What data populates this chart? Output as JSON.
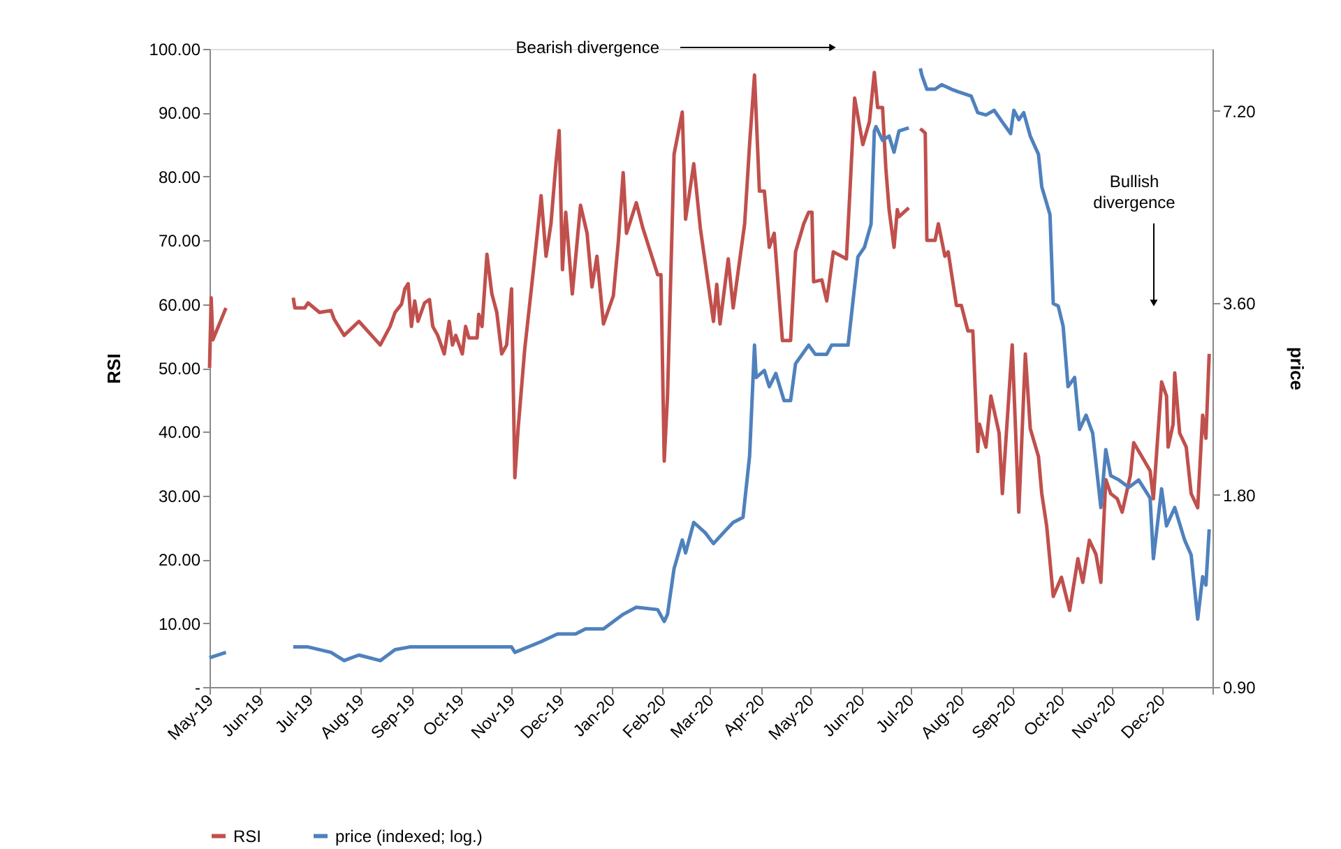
{
  "chart_data": {
    "type": "line",
    "ylabel": "RSI",
    "y2label": "price",
    "log": "y2",
    "grid": false,
    "legend": "bottom",
    "xlim": [
      "2019-05-01",
      "2021-01-01"
    ],
    "xticks": [
      {
        "value": "2019-05-01",
        "label": "May-19"
      },
      {
        "value": "2019-06-01",
        "label": "Jun-19"
      },
      {
        "value": "2019-07-01",
        "label": "Jul-19"
      },
      {
        "value": "2019-08-01",
        "label": "Aug-19"
      },
      {
        "value": "2019-09-01",
        "label": "Sep-19"
      },
      {
        "value": "2019-10-01",
        "label": "Oct-19"
      },
      {
        "value": "2019-11-01",
        "label": "Nov-19"
      },
      {
        "value": "2019-12-01",
        "label": "Dec-19"
      },
      {
        "value": "2020-01-01",
        "label": "Jan-20"
      },
      {
        "value": "2020-02-01",
        "label": "Feb-20"
      },
      {
        "value": "2020-03-01",
        "label": "Mar-20"
      },
      {
        "value": "2020-04-01",
        "label": "Apr-20"
      },
      {
        "value": "2020-05-01",
        "label": "May-20"
      },
      {
        "value": "2020-06-01",
        "label": "Jun-20"
      },
      {
        "value": "2020-07-01",
        "label": "Jul-20"
      },
      {
        "value": "2020-08-01",
        "label": "Aug-20"
      },
      {
        "value": "2020-09-01",
        "label": "Sep-20"
      },
      {
        "value": "2020-10-01",
        "label": "Oct-20"
      },
      {
        "value": "2020-11-01",
        "label": "Nov-20"
      },
      {
        "value": "2020-12-01",
        "label": "Dec-20"
      },
      {
        "value": "2021-01-01",
        "label": null
      }
    ],
    "ylim": [
      0,
      100
    ],
    "yticks": [
      {
        "value": 0,
        "label": "-"
      },
      {
        "value": 10,
        "label": "10.00"
      },
      {
        "value": 20,
        "label": "20.00"
      },
      {
        "value": 30,
        "label": "30.00"
      },
      {
        "value": 40,
        "label": "40.00"
      },
      {
        "value": 50,
        "label": "50.00"
      },
      {
        "value": 60,
        "label": "60.00"
      },
      {
        "value": 70,
        "label": "70.00"
      },
      {
        "value": 80,
        "label": "80.00"
      },
      {
        "value": 90,
        "label": "90.00"
      },
      {
        "value": 100,
        "label": "100.00"
      }
    ],
    "y2lim": [
      0.9,
      9.0
    ],
    "y2ticks": [
      {
        "value": 0.9,
        "label": "0.90"
      },
      {
        "value": 1.8,
        "label": "1.80"
      },
      {
        "value": 3.6,
        "label": "3.60"
      },
      {
        "value": 7.2,
        "label": "7.20"
      }
    ],
    "annotations": [
      "Bearish divergence",
      "Bullish divergence"
    ],
    "series": [
      {
        "name": "RSI",
        "color": "#c0504d",
        "x": [
          "2019-05-01",
          "2019-05-02",
          "2019-05-03",
          "2019-05-11",
          "2019-06-01",
          "2019-06-21",
          "2019-06-22",
          "2019-06-28",
          "2019-06-30",
          "2019-07-07",
          "2019-07-14",
          "2019-07-16",
          "2019-07-22",
          "2019-07-31",
          "2019-08-13",
          "2019-08-19",
          "2019-08-22",
          "2019-08-26",
          "2019-08-28",
          "2019-08-30",
          "2019-09-01",
          "2019-09-03",
          "2019-09-05",
          "2019-09-09",
          "2019-09-12",
          "2019-09-14",
          "2019-09-17",
          "2019-09-21",
          "2019-09-24",
          "2019-09-26",
          "2019-09-28",
          "2019-10-02",
          "2019-10-04",
          "2019-10-06",
          "2019-10-11",
          "2019-10-12",
          "2019-10-14",
          "2019-10-17",
          "2019-10-20",
          "2019-10-23",
          "2019-10-26",
          "2019-10-29",
          "2019-11-01",
          "2019-11-03",
          "2019-11-05",
          "2019-11-09",
          "2019-11-14",
          "2019-11-17",
          "2019-11-19",
          "2019-11-22",
          "2019-11-25",
          "2019-11-28",
          "2019-11-30",
          "2019-12-02",
          "2019-12-04",
          "2019-12-08",
          "2019-12-13",
          "2019-12-17",
          "2019-12-20",
          "2019-12-23",
          "2019-12-27",
          "2020-01-02",
          "2020-01-05",
          "2020-01-08",
          "2020-01-10",
          "2020-01-16",
          "2020-01-20",
          "2020-01-29",
          "2020-01-31",
          "2020-02-02",
          "2020-02-04",
          "2020-02-08",
          "2020-02-13",
          "2020-02-15",
          "2020-02-20",
          "2020-02-24",
          "2020-03-03",
          "2020-03-05",
          "2020-03-07",
          "2020-03-12",
          "2020-03-15",
          "2020-03-22",
          "2020-03-25",
          "2020-03-28",
          "2020-03-31",
          "2020-04-03",
          "2020-04-06",
          "2020-04-09",
          "2020-04-14",
          "2020-04-19",
          "2020-04-22",
          "2020-04-27",
          "2020-04-30",
          "2020-05-02",
          "2020-05-03",
          "2020-05-08",
          "2020-05-11",
          "2020-05-15",
          "2020-05-23",
          "2020-05-25",
          "2020-05-28",
          "2020-06-02",
          "2020-06-06",
          "2020-06-09",
          "2020-06-11",
          "2020-06-14",
          "2020-06-16",
          "2020-06-18",
          "2020-06-21",
          "2020-06-23",
          "2020-06-24",
          "2020-06-30",
          "2020-07-04",
          "2020-07-07",
          "2020-07-10",
          "2020-07-11",
          "2020-07-16",
          "2020-07-18",
          "2020-07-22",
          "2020-07-24",
          "2020-07-29",
          "2020-08-01",
          "2020-08-05",
          "2020-08-08",
          "2020-08-11",
          "2020-08-12",
          "2020-08-16",
          "2020-08-19",
          "2020-08-24",
          "2020-08-26",
          "2020-09-01",
          "2020-09-05",
          "2020-09-09",
          "2020-09-12",
          "2020-09-17",
          "2020-09-19",
          "2020-09-22",
          "2020-09-26",
          "2020-10-01",
          "2020-10-06",
          "2020-10-11",
          "2020-10-14",
          "2020-10-18",
          "2020-10-22",
          "2020-10-25",
          "2020-10-28",
          "2020-10-31",
          "2020-11-04",
          "2020-11-07",
          "2020-11-12",
          "2020-11-14",
          "2020-11-19",
          "2020-11-24",
          "2020-11-26",
          "2020-12-01",
          "2020-12-04",
          "2020-12-05",
          "2020-12-08",
          "2020-12-09",
          "2020-12-12",
          "2020-12-16",
          "2020-12-19",
          "2020-12-23",
          "2020-12-26",
          "2020-12-28",
          "2020-12-30"
        ],
        "values": [
          50,
          61,
          54.4,
          59.4,
          null,
          61,
          59.4,
          59.4,
          60.2,
          58.7,
          59,
          57.6,
          55.1,
          57.3,
          53.6,
          56.5,
          58.7,
          60,
          62.4,
          63.2,
          56.5,
          60.5,
          57.3,
          60.2,
          60.7,
          56.5,
          55.1,
          52.2,
          57.3,
          53.6,
          55.1,
          52.2,
          56.5,
          54.7,
          54.7,
          58.4,
          56.5,
          67.8,
          61.6,
          58.7,
          52.2,
          53.6,
          62.4,
          32.8,
          40.5,
          52.9,
          64.6,
          71.9,
          77,
          67.5,
          72.6,
          82,
          87.2,
          65.4,
          74.4,
          61.6,
          75.5,
          71.1,
          62.7,
          67.5,
          56.9,
          61.3,
          69.7,
          80.6,
          71.1,
          75.9,
          71.9,
          64.6,
          64.6,
          35.4,
          45.6,
          83.5,
          90.1,
          73.3,
          82,
          71.9,
          57.3,
          63.1,
          56.9,
          67.1,
          59.4,
          72.6,
          85,
          95.9,
          77.7,
          77.7,
          68.9,
          71.1,
          54.3,
          54.3,
          68.2,
          72.6,
          74.4,
          74.4,
          63.5,
          63.8,
          60.5,
          68.2,
          67.1,
          77,
          92.3,
          85,
          88.6,
          96.3,
          90.8,
          90.8,
          81.3,
          74.8,
          68.9,
          74.8,
          73.7,
          75.1,
          null,
          87.5,
          86.8,
          70,
          70,
          72.6,
          67.5,
          68.2,
          59.8,
          59.8,
          55.8,
          55.8,
          36.9,
          41.2,
          37.6,
          45.6,
          39.8,
          30.3,
          53.6,
          27.4,
          52.2,
          40.5,
          36.1,
          30.3,
          25.2,
          14.2,
          17.2,
          12,
          20.1,
          16.4,
          23,
          20.8,
          16.4,
          32.5,
          30.3,
          29.5,
          27.4,
          33.2,
          38.3,
          36.1,
          33.9,
          29.5,
          47.8,
          45.6,
          37.6,
          41.2,
          49.2,
          39.8,
          37.6,
          30.3,
          28.1,
          42.6,
          39,
          52.2
        ]
      },
      {
        "name": "price (indexed; log.)",
        "color": "#4f81bd",
        "axis": "y2",
        "x": [
          "2019-05-01",
          "2019-05-11",
          "2019-06-01",
          "2019-06-21",
          "2019-06-30",
          "2019-07-14",
          "2019-07-22",
          "2019-07-31",
          "2019-08-13",
          "2019-08-22",
          "2019-08-31",
          "2019-09-11",
          "2019-10-18",
          "2019-11-01",
          "2019-11-03",
          "2019-11-19",
          "2019-11-29",
          "2019-12-10",
          "2019-12-16",
          "2019-12-27",
          "2020-01-08",
          "2020-01-16",
          "2020-01-29",
          "2020-02-02",
          "2020-02-04",
          "2020-02-08",
          "2020-02-13",
          "2020-02-15",
          "2020-02-20",
          "2020-02-27",
          "2020-03-03",
          "2020-03-10",
          "2020-03-15",
          "2020-03-21",
          "2020-03-25",
          "2020-03-28",
          "2020-03-29",
          "2020-04-03",
          "2020-04-06",
          "2020-04-10",
          "2020-04-15",
          "2020-04-19",
          "2020-04-22",
          "2020-04-30",
          "2020-05-04",
          "2020-05-11",
          "2020-05-14",
          "2020-05-24",
          "2020-05-30",
          "2020-06-03",
          "2020-06-07",
          "2020-06-09",
          "2020-06-10",
          "2020-06-14",
          "2020-06-18",
          "2020-06-21",
          "2020-06-24",
          "2020-06-30",
          "2020-07-04",
          "2020-07-07",
          "2020-07-08",
          "2020-07-11",
          "2020-07-16",
          "2020-07-20",
          "2020-07-26",
          "2020-07-30",
          "2020-08-07",
          "2020-08-11",
          "2020-08-16",
          "2020-08-21",
          "2020-08-26",
          "2020-08-31",
          "2020-09-02",
          "2020-09-05",
          "2020-09-08",
          "2020-09-12",
          "2020-09-17",
          "2020-09-19",
          "2020-09-24",
          "2020-09-26",
          "2020-09-29",
          "2020-10-02",
          "2020-10-05",
          "2020-10-09",
          "2020-10-12",
          "2020-10-16",
          "2020-10-20",
          "2020-10-25",
          "2020-10-28",
          "2020-10-31",
          "2020-11-05",
          "2020-11-11",
          "2020-11-17",
          "2020-11-24",
          "2020-11-26",
          "2020-12-01",
          "2020-12-04",
          "2020-12-09",
          "2020-12-15",
          "2020-12-19",
          "2020-12-23",
          "2020-12-26",
          "2020-12-28",
          "2020-12-30"
        ],
        "values": [
          1.0,
          1.02,
          null,
          1.04,
          1.04,
          1.02,
          0.99,
          1.01,
          0.99,
          1.03,
          1.04,
          1.04,
          1.04,
          1.04,
          1.02,
          1.06,
          1.09,
          1.09,
          1.11,
          1.11,
          1.17,
          1.2,
          1.19,
          1.14,
          1.17,
          1.38,
          1.53,
          1.46,
          1.63,
          1.57,
          1.51,
          1.58,
          1.63,
          1.66,
          2.07,
          3.09,
          2.75,
          2.82,
          2.66,
          2.79,
          2.53,
          2.53,
          2.89,
          3.09,
          2.99,
          2.99,
          3.09,
          3.09,
          4.25,
          4.4,
          4.78,
          6.69,
          6.8,
          6.47,
          6.57,
          6.2,
          6.69,
          6.77,
          null,
          8.39,
          8.18,
          7.78,
          7.78,
          7.91,
          7.78,
          7.71,
          7.59,
          7.15,
          7.09,
          7.21,
          6.91,
          6.63,
          7.21,
          6.97,
          7.15,
          6.57,
          6.15,
          5.47,
          4.95,
          3.59,
          3.56,
          3.31,
          2.66,
          2.75,
          2.28,
          2.4,
          2.25,
          1.72,
          2.12,
          1.93,
          1.9,
          1.85,
          1.9,
          1.78,
          1.43,
          1.84,
          1.61,
          1.72,
          1.53,
          1.45,
          1.15,
          1.34,
          1.3,
          1.59
        ]
      }
    ]
  }
}
